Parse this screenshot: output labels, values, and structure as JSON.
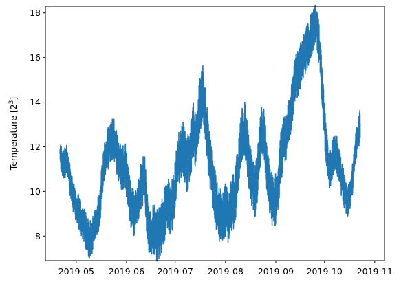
{
  "chart_data": {
    "type": "line",
    "ylabel": "Temperature [2",
    "ylabel_sup": "3",
    "ylabel_end": "]",
    "xlabel": "",
    "title": "",
    "grid": false,
    "legend": "none",
    "ylim": [
      6.9,
      18.3
    ],
    "xlim": [
      "2019-04-12",
      "2019-11-07"
    ],
    "series_color": "#1f77b4",
    "y_ticks": [
      8,
      10,
      12,
      14,
      16,
      18
    ],
    "x_ticks": [
      "2019-05",
      "2019-06",
      "2019-07",
      "2019-08",
      "2019-09",
      "2019-10",
      "2019-11"
    ],
    "series": [
      {
        "x": [
          "2019-04-21",
          "2019-04-23",
          "2019-04-25",
          "2019-04-27",
          "2019-04-29",
          "2019-05-01",
          "2019-05-03",
          "2019-05-05",
          "2019-05-07",
          "2019-05-09",
          "2019-05-11",
          "2019-05-13",
          "2019-05-15",
          "2019-05-17",
          "2019-05-19",
          "2019-05-21",
          "2019-05-23",
          "2019-05-25",
          "2019-05-27",
          "2019-05-29",
          "2019-05-31",
          "2019-06-02",
          "2019-06-04",
          "2019-06-06",
          "2019-06-08",
          "2019-06-10",
          "2019-06-12",
          "2019-06-14",
          "2019-06-16",
          "2019-06-18",
          "2019-06-20",
          "2019-06-22",
          "2019-06-24",
          "2019-06-26",
          "2019-06-28",
          "2019-06-30",
          "2019-07-02",
          "2019-07-04",
          "2019-07-06",
          "2019-07-08",
          "2019-07-10",
          "2019-07-12",
          "2019-07-14",
          "2019-07-16",
          "2019-07-18",
          "2019-07-20",
          "2019-07-22",
          "2019-07-24",
          "2019-07-26",
          "2019-07-28",
          "2019-07-30",
          "2019-08-01",
          "2019-08-03",
          "2019-08-05",
          "2019-08-07",
          "2019-08-09",
          "2019-08-11",
          "2019-08-13",
          "2019-08-15",
          "2019-08-17",
          "2019-08-19",
          "2019-08-21",
          "2019-08-23",
          "2019-08-25",
          "2019-08-27",
          "2019-08-29",
          "2019-08-31",
          "2019-09-02",
          "2019-09-04",
          "2019-09-06",
          "2019-09-08",
          "2019-09-10",
          "2019-09-12",
          "2019-09-14",
          "2019-09-16",
          "2019-09-18",
          "2019-09-20",
          "2019-09-22",
          "2019-09-24",
          "2019-09-26",
          "2019-09-28",
          "2019-09-30",
          "2019-10-02",
          "2019-10-04",
          "2019-10-06",
          "2019-10-08",
          "2019-10-10",
          "2019-10-12",
          "2019-10-14",
          "2019-10-16",
          "2019-10-18",
          "2019-10-20",
          "2019-10-22",
          "2019-10-23"
        ],
        "y": [
          11.6,
          11.2,
          11.4,
          10.6,
          9.8,
          9.3,
          9.0,
          8.6,
          8.2,
          7.8,
          8.1,
          8.6,
          9.0,
          10.5,
          11.6,
          12.0,
          12.4,
          12.2,
          11.4,
          11.0,
          11.3,
          10.2,
          9.2,
          9.0,
          9.4,
          10.2,
          10.8,
          8.6,
          8.0,
          8.4,
          8.0,
          8.3,
          8.8,
          9.5,
          9.2,
          9.6,
          11.0,
          11.8,
          12.0,
          11.2,
          11.5,
          12.8,
          12.2,
          13.8,
          14.5,
          13.0,
          11.6,
          10.5,
          9.5,
          8.9,
          9.0,
          9.2,
          8.8,
          9.4,
          9.8,
          11.0,
          12.6,
          12.8,
          11.6,
          10.6,
          9.8,
          11.0,
          12.8,
          12.5,
          10.6,
          9.8,
          9.4,
          10.0,
          11.5,
          12.2,
          12.6,
          13.6,
          14.6,
          15.2,
          15.6,
          16.0,
          16.4,
          16.8,
          17.2,
          17.5,
          16.4,
          14.2,
          12.0,
          10.8,
          11.5,
          11.8,
          11.2,
          10.4,
          9.8,
          9.6,
          10.4,
          11.8,
          12.6,
          13.0
        ]
      }
    ]
  }
}
